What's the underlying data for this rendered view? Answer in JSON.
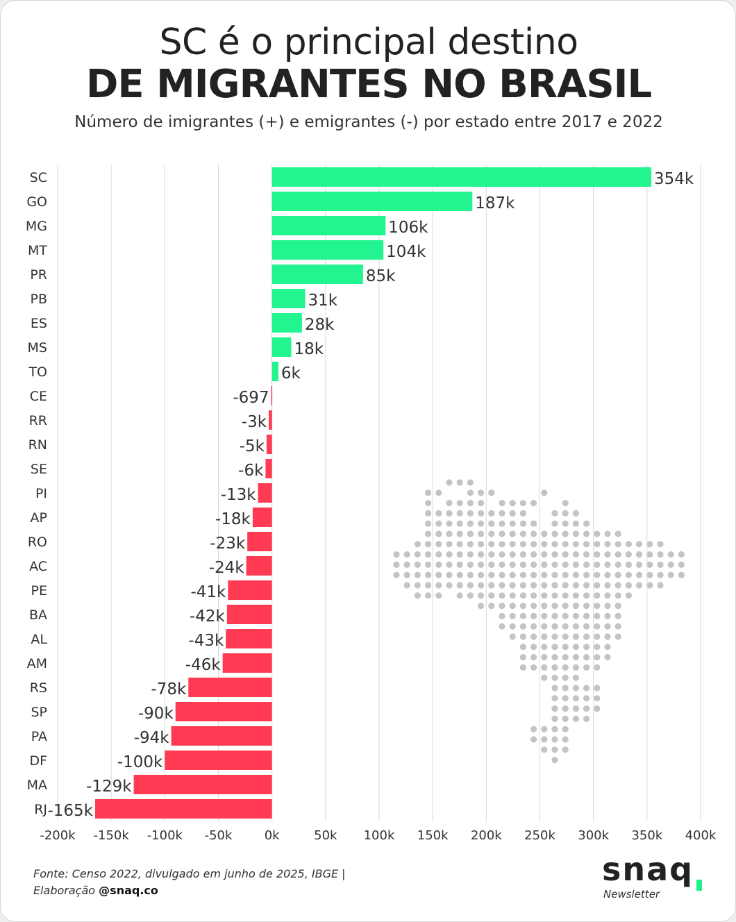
{
  "header": {
    "title_line1": "SC é o principal destino",
    "title_line2": "DE MIGRANTES NO BRASIL",
    "subtitle": "Número de imigrantes (+) e emigrantes (-) por estado entre 2017 e 2022"
  },
  "chart_data": {
    "type": "bar",
    "orientation": "horizontal",
    "categories": [
      "SC",
      "GO",
      "MG",
      "MT",
      "PR",
      "PB",
      "ES",
      "MS",
      "TO",
      "CE",
      "RR",
      "RN",
      "SE",
      "PI",
      "AP",
      "RO",
      "AC",
      "PE",
      "BA",
      "AL",
      "AM",
      "RS",
      "SP",
      "PA",
      "DF",
      "MA",
      "RJ"
    ],
    "values": [
      354000,
      187000,
      106000,
      104000,
      85000,
      31000,
      28000,
      18000,
      6000,
      -697,
      -3000,
      -5000,
      -6000,
      -13000,
      -18000,
      -23000,
      -24000,
      -41000,
      -42000,
      -43000,
      -46000,
      -78000,
      -90000,
      -94000,
      -100000,
      -129000,
      -165000
    ],
    "data_labels": [
      "354k",
      "187k",
      "106k",
      "104k",
      "85k",
      "31k",
      "28k",
      "18k",
      "6k",
      "-697",
      "-3k",
      "-5k",
      "-6k",
      "-13k",
      "-18k",
      "-23k",
      "-24k",
      "-41k",
      "-42k",
      "-43k",
      "-46k",
      "-78k",
      "-90k",
      "-94k",
      "-100k",
      "-129k",
      "-165k"
    ],
    "xlim": [
      -200000,
      400000
    ],
    "x_ticks": [
      -200000,
      -150000,
      -100000,
      -50000,
      0,
      50000,
      100000,
      150000,
      200000,
      250000,
      300000,
      350000,
      400000
    ],
    "x_tick_labels": [
      "-200k",
      "-150k",
      "-100k",
      "-50k",
      "0k",
      "50k",
      "100k",
      "150k",
      "200k",
      "250k",
      "300k",
      "350k",
      "400k"
    ],
    "grid": "vertical",
    "colors": {
      "positive": "#22f58f",
      "negative": "#ff3a52",
      "grid": "#d9d9d9"
    }
  },
  "decoration": {
    "map_icon": "brazil-dot-map-icon",
    "map_color": "#c4c4c4"
  },
  "footer": {
    "source_line1": "Fonte: Censo 2022, divulgado em junho de 2025, IBGE |",
    "source_line2_prefix": "Elaboração ",
    "source_handle": "@snaq.co"
  },
  "brand": {
    "name": "snaq",
    "tagline": "Newsletter",
    "accent_color": "#1df28c"
  }
}
